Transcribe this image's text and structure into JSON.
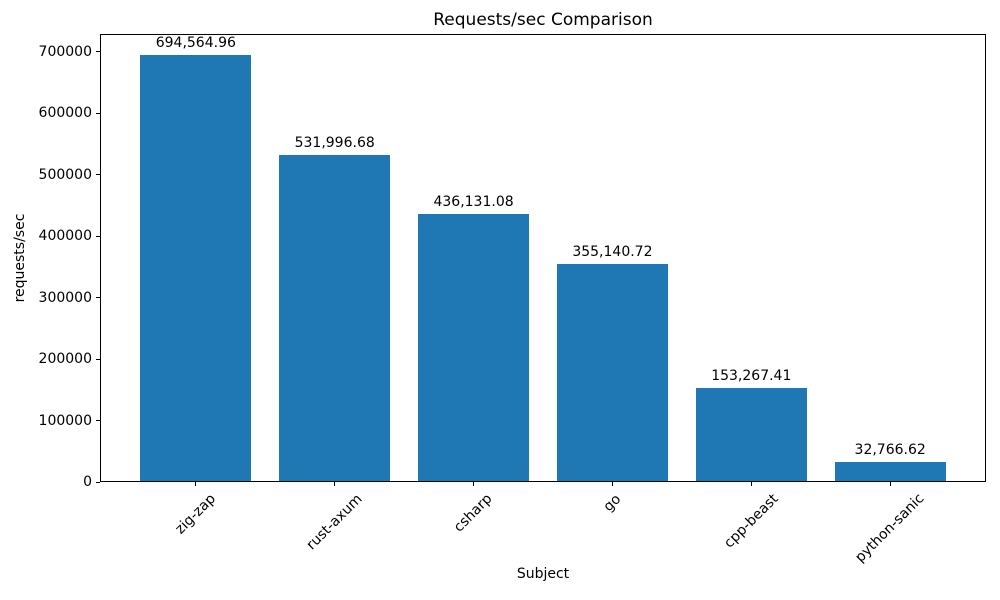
{
  "chart_data": {
    "type": "bar",
    "title": "Requests/sec Comparison",
    "xlabel": "Subject",
    "ylabel": "requests/sec",
    "categories": [
      "zig-zap",
      "rust-axum",
      "csharp",
      "go",
      "cpp-beast",
      "python-sanic"
    ],
    "values": [
      694564.96,
      531996.68,
      436131.08,
      355140.72,
      153267.41,
      32766.62
    ],
    "value_labels": [
      "694,564.96",
      "531,996.68",
      "436,131.08",
      "355,140.72",
      "153,267.41",
      "32,766.62"
    ],
    "y_ticks": [
      0,
      100000,
      200000,
      300000,
      400000,
      500000,
      600000,
      700000
    ],
    "y_tick_labels": [
      "0",
      "100000",
      "200000",
      "300000",
      "400000",
      "500000",
      "600000",
      "700000"
    ],
    "ylim": [
      0,
      729293
    ],
    "xlim": [
      -0.69,
      5.69
    ],
    "bar_width_units": 0.8,
    "x_tick_label_rotation_deg": 45,
    "bar_color": "#1f77b4",
    "text_color": "#000000",
    "background_color": "#ffffff",
    "grid": false,
    "legend": null
  }
}
